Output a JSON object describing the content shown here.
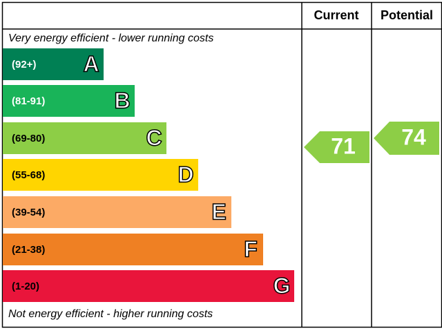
{
  "header": {
    "columns": [
      "Current",
      "Potential"
    ]
  },
  "top_note": "Very energy efficient - lower running costs",
  "bottom_note": "Not energy efficient - higher running costs",
  "bands": [
    {
      "range": "(92+)",
      "letter": "A",
      "color": "#008054"
    },
    {
      "range": "(81-91)",
      "letter": "B",
      "color": "#19b459"
    },
    {
      "range": "(69-80)",
      "letter": "C",
      "color": "#8dce46"
    },
    {
      "range": "(55-68)",
      "letter": "D",
      "color": "#ffd500"
    },
    {
      "range": "(39-54)",
      "letter": "E",
      "color": "#fcaa65"
    },
    {
      "range": "(21-38)",
      "letter": "F",
      "color": "#ef8023"
    },
    {
      "range": "(1-20)",
      "letter": "G",
      "color": "#e9153b"
    }
  ],
  "current": {
    "value": 71,
    "color": "#8dce46"
  },
  "potential": {
    "value": 74,
    "color": "#8dce46"
  }
}
